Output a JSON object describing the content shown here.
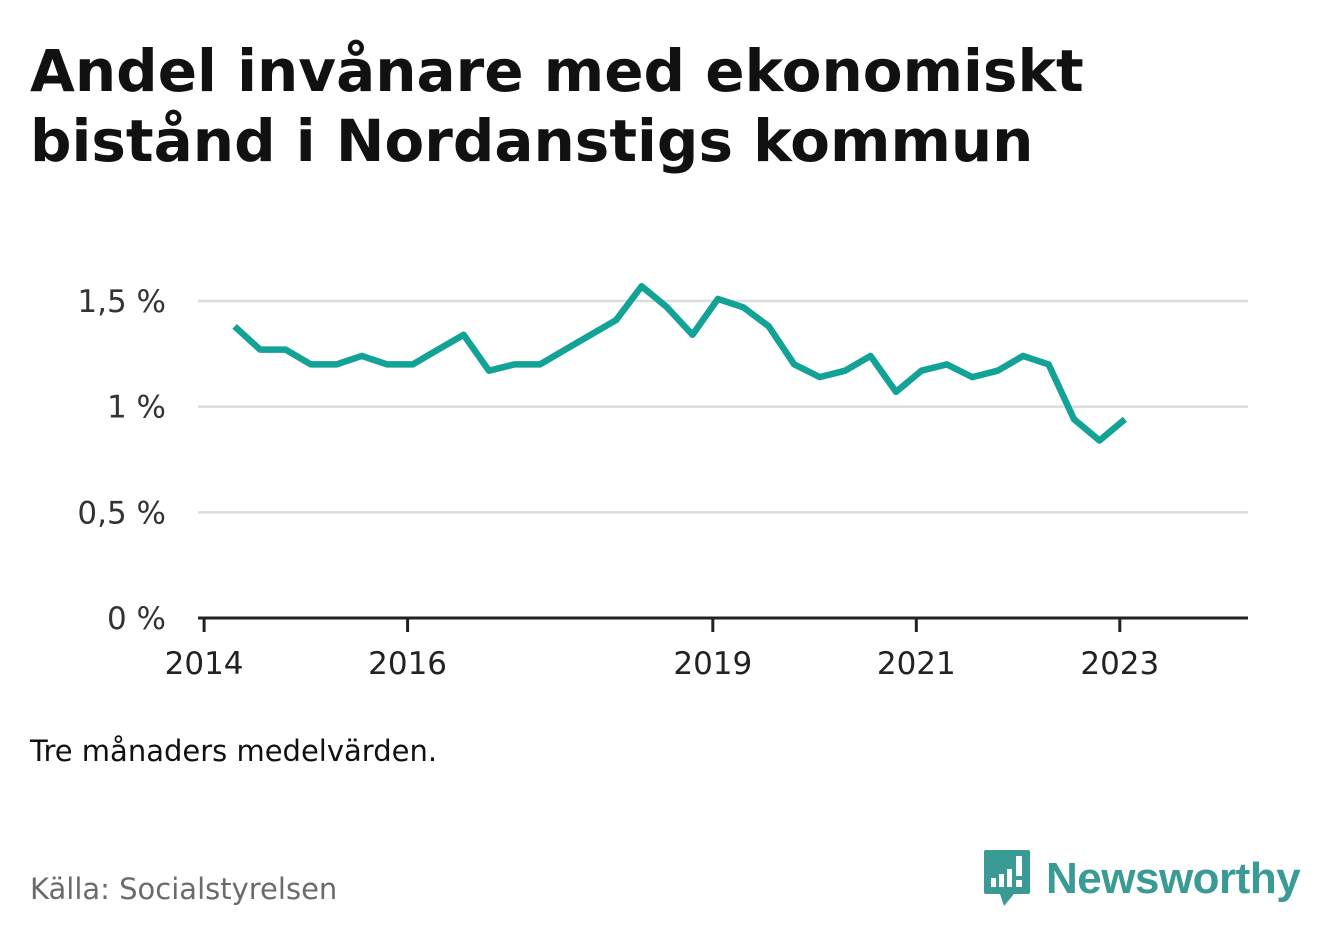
{
  "title": "Andel invånare med ekonomiskt bistånd i Nordanstigs kommun",
  "note": "Tre månaders medelvärden.",
  "source": "Källa: Socialstyrelsen",
  "brand": {
    "name": "Newsworthy",
    "icon": "newsworthy-logo-icon",
    "color": "#3a9a94"
  },
  "chart_data": {
    "type": "line",
    "title": "Andel invånare med ekonomiskt bistånd i Nordanstigs kommun",
    "xlabel": "",
    "ylabel": "",
    "xlim": [
      2013.94,
      2024.26
    ],
    "ylim": [
      0,
      1.5
    ],
    "y_ticks": [
      {
        "value": 0,
        "label": "0 %"
      },
      {
        "value": 0.5,
        "label": "0,5 %"
      },
      {
        "value": 1,
        "label": "1 %"
      },
      {
        "value": 1.5,
        "label": "1,5 %"
      }
    ],
    "x_ticks": [
      {
        "value": 2014,
        "label": "2014"
      },
      {
        "value": 2016,
        "label": "2016"
      },
      {
        "value": 2019,
        "label": "2019"
      },
      {
        "value": 2021,
        "label": "2021"
      },
      {
        "value": 2023,
        "label": "2023"
      }
    ],
    "grid": true,
    "line_color": "#13a396",
    "series": [
      {
        "x": [
          2014.3,
          2014.55,
          2014.8,
          2015.05,
          2015.3,
          2015.55,
          2015.8,
          2016.05,
          2016.3,
          2016.55,
          2016.8,
          2017.05,
          2017.3,
          2017.55,
          2017.8,
          2018.05,
          2018.3,
          2018.55,
          2018.8,
          2019.05,
          2019.3,
          2019.55,
          2019.8,
          2020.05,
          2020.3,
          2020.55,
          2020.8,
          2021.05,
          2021.3,
          2021.55,
          2021.8,
          2022.05,
          2022.3,
          2022.55,
          2022.8,
          2023.05
        ],
        "values": [
          1.38,
          1.27,
          1.27,
          1.2,
          1.2,
          1.24,
          1.2,
          1.2,
          1.27,
          1.34,
          1.17,
          1.2,
          1.2,
          1.27,
          1.34,
          1.41,
          1.57,
          1.47,
          1.34,
          1.51,
          1.47,
          1.38,
          1.2,
          1.14,
          1.17,
          1.24,
          1.07,
          1.17,
          1.2,
          1.14,
          1.17,
          1.24,
          1.2,
          0.94,
          0.84,
          0.94
        ]
      }
    ]
  }
}
